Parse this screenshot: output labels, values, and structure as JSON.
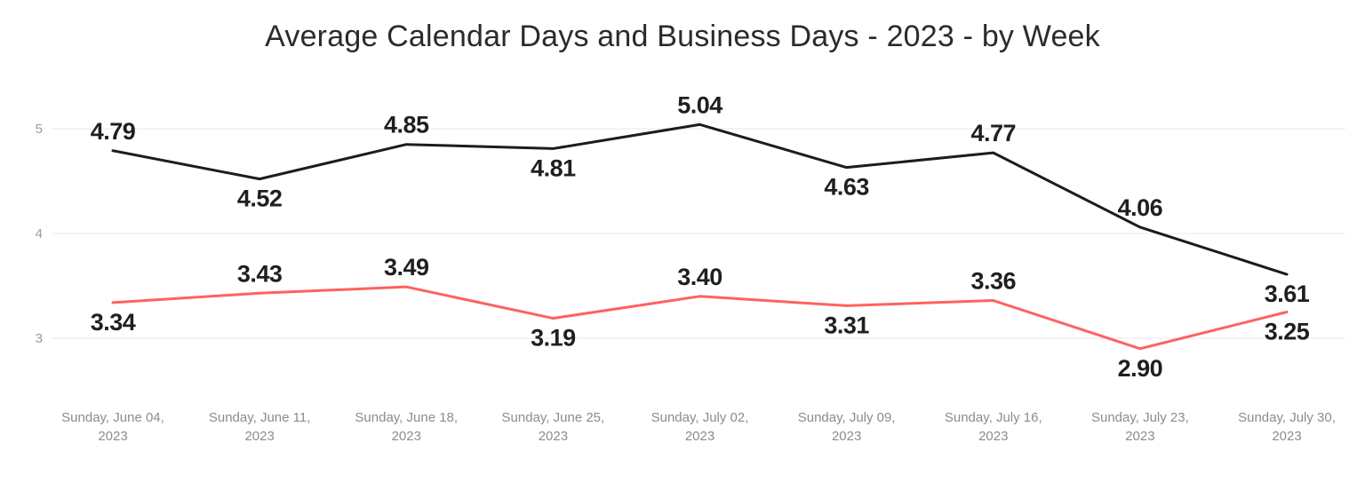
{
  "chart_data": {
    "type": "line",
    "title": "Average Calendar Days and Business Days - 2023 - by Week",
    "xlabel": "",
    "ylabel": "",
    "categories": [
      "Sunday, June 04, 2023",
      "Sunday, June 11, 2023",
      "Sunday, June 18, 2023",
      "Sunday, June 25, 2023",
      "Sunday, July 02, 2023",
      "Sunday, July 09, 2023",
      "Sunday, July 16, 2023",
      "Sunday, July 23, 2023",
      "Sunday, July 30, 2023"
    ],
    "series": [
      {
        "name": "Calendar Days",
        "color": "#1c1c1c",
        "values": [
          4.79,
          4.52,
          4.85,
          4.81,
          5.04,
          4.63,
          4.77,
          4.06,
          3.61
        ],
        "label_positions": [
          "above",
          "below",
          "above",
          "below",
          "above",
          "below",
          "above",
          "above",
          "below"
        ]
      },
      {
        "name": "Business Days",
        "color": "#FD625E",
        "values": [
          3.34,
          3.43,
          3.49,
          3.19,
          3.4,
          3.31,
          3.36,
          2.9,
          3.25
        ],
        "label_positions": [
          "below",
          "above",
          "above",
          "below",
          "above",
          "below",
          "above",
          "below",
          "below"
        ]
      }
    ],
    "yticks": [
      5,
      4,
      3
    ],
    "ylim": [
      2.5,
      5.5
    ],
    "grid": "horizontal",
    "legend": "none",
    "data_label_decimals": 2
  }
}
